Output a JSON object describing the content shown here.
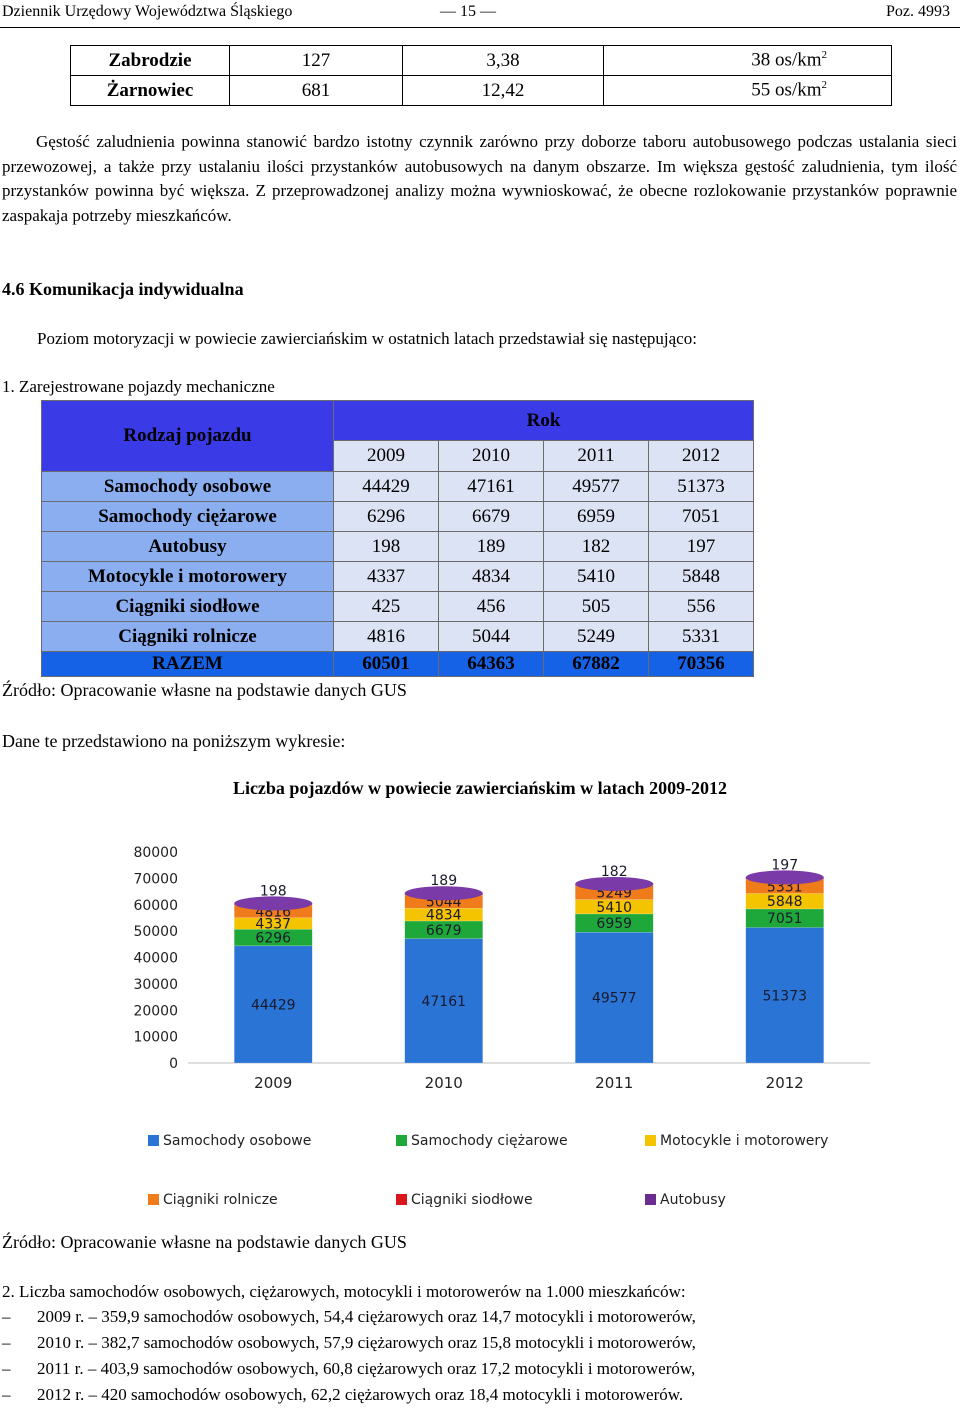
{
  "header": {
    "left": "Dziennik Urzędowy Województwa Śląskiego",
    "center": "— 15 —",
    "right": "Poz. 4993"
  },
  "density_table": {
    "rows": [
      {
        "name": "Zabrodzie",
        "v1": "127",
        "v2": "3,38",
        "v3": "38 os/km",
        "sup": "2"
      },
      {
        "name": "Żarnowiec",
        "v1": "681",
        "v2": "12,42",
        "v3": "55 os/km",
        "sup": "2"
      }
    ]
  },
  "paragraph": "Gęstość zaludnienia powinna stanowić bardzo istotny czynnik zarówno przy doborze taboru autobusowego podczas ustalania sieci przewozowej, a także przy ustalaniu ilości przystanków autobusowych na danym obszarze. Im większa gęstość zaludnienia, tym ilość przystanków powinna być większa. Z przeprowadzonej analizy można wywnioskować, że obecne rozlokowanie przystanków poprawnie zaspakaja potrzeby mieszkańców.",
  "section_heading": "4.6 Komunikacja indywidualna",
  "intro": "Poziom motoryzacji w powiecie zawierciańskim w ostatnich latach przedstawiał się następująco:",
  "item1_title": "1. Zarejestrowane pojazdy mechaniczne",
  "vehicles_table": {
    "col_header": "Rodzaj pojazdu",
    "year_header": "Rok",
    "years": [
      "2009",
      "2010",
      "2011",
      "2012"
    ],
    "rows": [
      {
        "label": "Samochody osobowe",
        "values": [
          "44429",
          "47161",
          "49577",
          "51373"
        ]
      },
      {
        "label": "Samochody ciężarowe",
        "values": [
          "6296",
          "6679",
          "6959",
          "7051"
        ]
      },
      {
        "label": "Autobusy",
        "values": [
          "198",
          "189",
          "182",
          "197"
        ]
      },
      {
        "label": "Motocykle i motorowery",
        "values": [
          "4337",
          "4834",
          "5410",
          "5848"
        ]
      },
      {
        "label": "Ciągniki siodłowe",
        "values": [
          "425",
          "456",
          "505",
          "556"
        ]
      },
      {
        "label": "Ciągniki rolnicze",
        "values": [
          "4816",
          "5044",
          "5249",
          "5331"
        ]
      }
    ],
    "total": {
      "label": "RAZEM",
      "values": [
        "60501",
        "64363",
        "67882",
        "70356"
      ]
    }
  },
  "source1": "Źródło: Opracowanie własne na podstawie danych GUS",
  "chart_intro": "Dane te przedstawiono na poniższym wykresie:",
  "chart_data": {
    "type": "bar",
    "stacked": true,
    "title": "Liczba pojazdów w powiecie zawierciańskim w latach 2009-2012",
    "categories": [
      "2009",
      "2010",
      "2011",
      "2012"
    ],
    "ylim": [
      0,
      80000
    ],
    "yticks": [
      0,
      10000,
      20000,
      30000,
      40000,
      50000,
      60000,
      70000,
      80000
    ],
    "series": [
      {
        "name": "Samochody osobowe",
        "color": "#2a74d6",
        "values": [
          44429,
          47161,
          49577,
          51373
        ]
      },
      {
        "name": "Samochody ciężarowe",
        "color": "#1fa83a",
        "values": [
          6296,
          6679,
          6959,
          7051
        ]
      },
      {
        "name": "Motocykle i motorowery",
        "color": "#f5c400",
        "values": [
          4337,
          4834,
          5410,
          5848
        ]
      },
      {
        "name": "Ciągniki rolnicze",
        "color": "#ef7b1a",
        "values": [
          4816,
          5044,
          5249,
          5331
        ]
      },
      {
        "name": "Ciągniki siodłowe",
        "color": "#d8161c",
        "values": [
          425,
          456,
          505,
          556
        ]
      },
      {
        "name": "Autobusy",
        "color": "#6a2d8f",
        "values": [
          198,
          189,
          182,
          197
        ]
      }
    ],
    "legend_position": "bottom"
  },
  "source2": "Źródło: Opracowanie własne na podstawie danych GUS",
  "item2_title": "2. Liczba samochodów osobowych, ciężarowych, motocykli i motorowerów na 1.000 mieszkańców:",
  "dash_items": [
    "2009 r. – 359,9 samochodów osobowych, 54,4 ciężarowych oraz 14,7 motocykli i motorowerów,",
    "2010 r. – 382,7 samochodów osobowych, 57,9 ciężarowych oraz 15,8 motocykli i motorowerów,",
    "2011 r. – 403,9 samochodów osobowych, 60,8 ciężarowych oraz 17,2 motocykli i motorowerów,",
    "2012 r. – 420 samochodów osobowych, 62,2 ciężarowych oraz 18,4 motocykli i motorowerów."
  ],
  "dash_mark": "–"
}
